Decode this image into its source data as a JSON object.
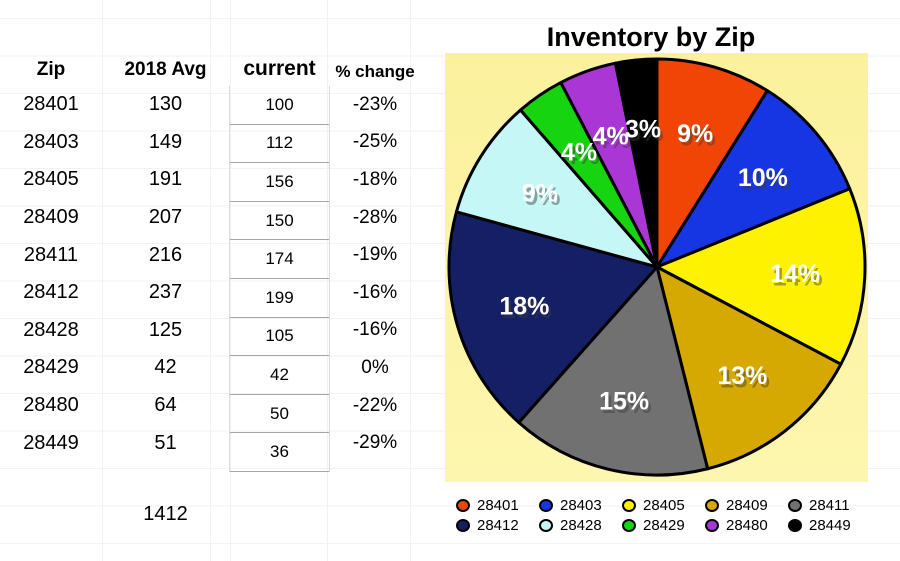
{
  "sheet": {
    "table": {
      "headers": [
        "Zip",
        "2018 Avg",
        "current",
        "% change"
      ],
      "rows": [
        {
          "zip": "28401",
          "avg_2018": "130",
          "current": "100",
          "pct_change": "-23%"
        },
        {
          "zip": "28403",
          "avg_2018": "149",
          "current": "112",
          "pct_change": "-25%"
        },
        {
          "zip": "28405",
          "avg_2018": "191",
          "current": "156",
          "pct_change": "-18%"
        },
        {
          "zip": "28409",
          "avg_2018": "207",
          "current": "150",
          "pct_change": "-28%"
        },
        {
          "zip": "28411",
          "avg_2018": "216",
          "current": "174",
          "pct_change": "-19%"
        },
        {
          "zip": "28412",
          "avg_2018": "237",
          "current": "199",
          "pct_change": "-16%"
        },
        {
          "zip": "28428",
          "avg_2018": "125",
          "current": "105",
          "pct_change": "-16%"
        },
        {
          "zip": "28429",
          "avg_2018": "42",
          "current": "42",
          "pct_change": "0%"
        },
        {
          "zip": "28480",
          "avg_2018": "64",
          "current": "50",
          "pct_change": "-22%"
        },
        {
          "zip": "28449",
          "avg_2018": "51",
          "current": "36",
          "pct_change": "-29%"
        }
      ],
      "total_2018_avg": "1412"
    }
  },
  "chart_data": {
    "type": "pie",
    "title": "Inventory by Zip",
    "start_angle_deg": -90,
    "direction": "clockwise",
    "legend_position": "bottom",
    "plot_background": "#FCF4A0",
    "label_color": "#FFFFFF",
    "slices": [
      {
        "label": "28401",
        "value": 100,
        "percent": "9%",
        "color": "#F04505"
      },
      {
        "label": "28403",
        "value": 112,
        "percent": "10%",
        "color": "#1736E3"
      },
      {
        "label": "28405",
        "value": 156,
        "percent": "14%",
        "color": "#FFF200"
      },
      {
        "label": "28409",
        "value": 150,
        "percent": "13%",
        "color": "#D5A902"
      },
      {
        "label": "28411",
        "value": 174,
        "percent": "15%",
        "color": "#717171"
      },
      {
        "label": "28412",
        "value": 199,
        "percent": "18%",
        "color": "#141F66"
      },
      {
        "label": "28428",
        "value": 105,
        "percent": "9%",
        "color": "#C6F7F7"
      },
      {
        "label": "28429",
        "value": 42,
        "percent": "4%",
        "color": "#16D40F"
      },
      {
        "label": "28480",
        "value": 50,
        "percent": "4%",
        "color": "#AA36D6"
      },
      {
        "label": "28449",
        "value": 36,
        "percent": "3%",
        "color": "#000000"
      }
    ]
  }
}
